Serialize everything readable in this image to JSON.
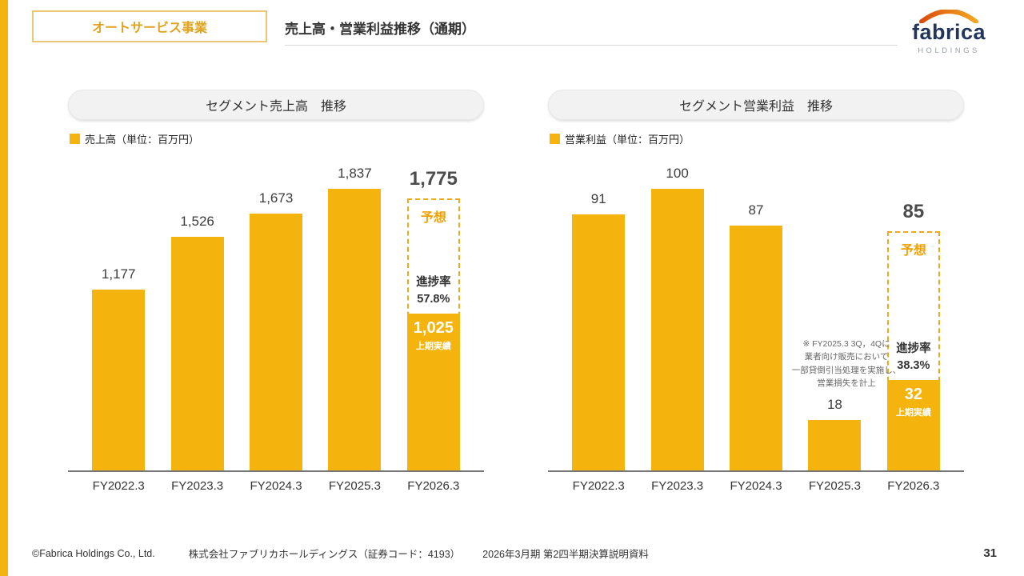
{
  "slide": {
    "accent_color": "#F5B30D"
  },
  "header": {
    "category_label": "オートサービス事業",
    "title": "売上高・営業利益推移（通期）",
    "logo_text": "fabrica",
    "logo_sub": "HOLDINGS"
  },
  "chart_data": [
    {
      "type": "bar",
      "title": "セグメント売上高　推移",
      "legend": "売上高（単位：百万円）",
      "categories": [
        "FY2022.3",
        "FY2023.3",
        "FY2024.3",
        "FY2025.3",
        "FY2026.3"
      ],
      "values": [
        1177,
        1526,
        1673,
        1837,
        1775
      ],
      "value_labels": [
        "1,177",
        "1,526",
        "1,673",
        "1,837",
        "1,775"
      ],
      "ylim": [
        0,
        1900
      ],
      "bar_color": "#F5B30D",
      "legend_position": "top-left",
      "grid": false,
      "forecast": {
        "label": "予想",
        "progress_label": "進捗率",
        "progress_value": "57.8%",
        "actual_numeric": 1025,
        "actual_value": "1,025",
        "actual_label": "上期実績"
      }
    },
    {
      "type": "bar",
      "title": "セグメント営業利益　推移",
      "legend": "営業利益（単位：百万円）",
      "categories": [
        "FY2022.3",
        "FY2023.3",
        "FY2024.3",
        "FY2025.3",
        "FY2026.3"
      ],
      "values": [
        91,
        100,
        87,
        18,
        85
      ],
      "value_labels": [
        "91",
        "100",
        "87",
        "18",
        "85"
      ],
      "ylim": [
        0,
        110
      ],
      "bar_color": "#F5B30D",
      "legend_position": "top-left",
      "grid": false,
      "forecast": {
        "label": "予想",
        "progress_label": "進捗率",
        "progress_value": "38.3%",
        "actual_numeric": 32,
        "actual_value": "32",
        "actual_label": "上期実績"
      },
      "note": "※ FY2025.3  3Q，4Qに\n業者向け販売において\n一部貸倒引当処理を実施し、\n営業損失を計上"
    }
  ],
  "footer": {
    "copyright": "©Fabrica Holdings Co., Ltd.",
    "company": "株式会社ファブリカホールディングス（証券コード：4193）",
    "document": "2026年3月期 第2四半期決算説明資料",
    "page_number": "31"
  }
}
